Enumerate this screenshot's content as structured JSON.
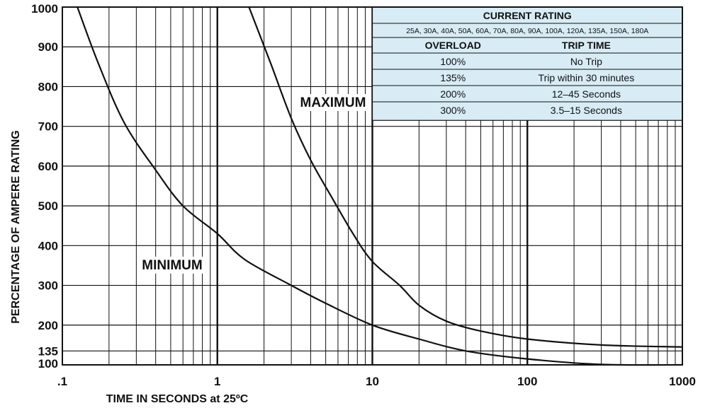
{
  "chart_data": {
    "type": "line",
    "title": "",
    "xlabel": "TIME IN SECONDS at 25ºC",
    "ylabel": "PERCENTAGE OF AMPERE RATING",
    "x_scale": "log",
    "xlim": [
      0.1,
      1000
    ],
    "ylim": [
      100,
      1000
    ],
    "grid": true,
    "x_ticks": [
      {
        "value": 0.1,
        "label": ".1"
      },
      {
        "value": 1,
        "label": "1"
      },
      {
        "value": 10,
        "label": "10"
      },
      {
        "value": 100,
        "label": "100"
      },
      {
        "value": 1000,
        "label": "1000"
      }
    ],
    "y_ticks": [
      {
        "value": 1000,
        "label": "1000"
      },
      {
        "value": 900,
        "label": "900"
      },
      {
        "value": 800,
        "label": "800"
      },
      {
        "value": 700,
        "label": "700"
      },
      {
        "value": 600,
        "label": "600"
      },
      {
        "value": 500,
        "label": "500"
      },
      {
        "value": 400,
        "label": "400"
      },
      {
        "value": 300,
        "label": "300"
      },
      {
        "value": 200,
        "label": "200"
      },
      {
        "value": 135,
        "label": "135"
      },
      {
        "value": 100,
        "label": "100"
      }
    ],
    "series": [
      {
        "name": "MINIMUM",
        "points": [
          [
            0.125,
            1000
          ],
          [
            0.17,
            860
          ],
          [
            0.25,
            710
          ],
          [
            0.4,
            590
          ],
          [
            0.6,
            500
          ],
          [
            1.0,
            430
          ],
          [
            1.5,
            365
          ],
          [
            3,
            300
          ],
          [
            5,
            255
          ],
          [
            10,
            200
          ],
          [
            20,
            165
          ],
          [
            40,
            135
          ],
          [
            100,
            115
          ],
          [
            300,
            101
          ],
          [
            1000,
            100
          ]
        ]
      },
      {
        "name": "MAXIMUM",
        "points": [
          [
            1.6,
            1000
          ],
          [
            2.2,
            860
          ],
          [
            3,
            720
          ],
          [
            4,
            615
          ],
          [
            5.5,
            520
          ],
          [
            7.5,
            430
          ],
          [
            10,
            360
          ],
          [
            15,
            300
          ],
          [
            20,
            250
          ],
          [
            30,
            210
          ],
          [
            50,
            185
          ],
          [
            100,
            165
          ],
          [
            300,
            150
          ],
          [
            1000,
            145
          ]
        ]
      }
    ],
    "annotations": [
      {
        "text": "MAXIMUM",
        "series": "MAXIMUM"
      },
      {
        "text": "MINIMUM",
        "series": "MINIMUM"
      }
    ]
  },
  "rating_table": {
    "title": "CURRENT RATING",
    "ratings": "25A, 30A, 40A, 50A, 60A, 70A, 80A, 90A, 100A, 120A, 135A, 150A, 180A",
    "col_headers": [
      "OVERLOAD",
      "TRIP TIME"
    ],
    "rows": [
      [
        "100%",
        "No Trip"
      ],
      [
        "135%",
        "Trip within 30 minutes"
      ],
      [
        "200%",
        "12–45 Seconds"
      ],
      [
        "300%",
        "3.5–15 Seconds"
      ]
    ],
    "bg_color": "#d8ecf5"
  }
}
